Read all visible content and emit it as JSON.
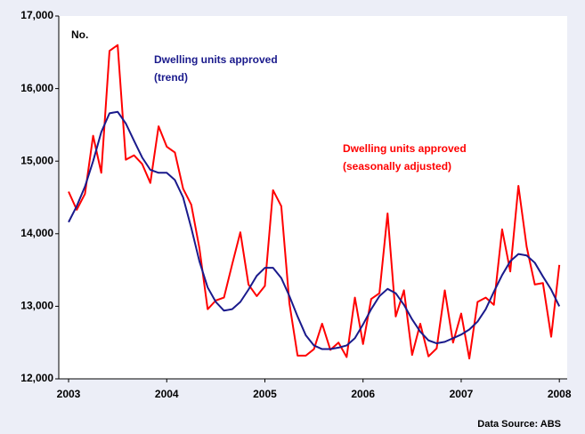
{
  "chart_data": {
    "type": "line",
    "annotations": [
      {
        "text": "No.",
        "color": "#000000"
      },
      {
        "text": "Dwelling units approved",
        "color": "#1a1a8c"
      },
      {
        "text": "(trend)",
        "color": "#1a1a8c"
      },
      {
        "text": "Dwelling units approved",
        "color": "#ff0000"
      },
      {
        "text": "(seasonally adjusted)",
        "color": "#ff0000"
      }
    ],
    "source": "Data Source: ABS",
    "x": [
      2003,
      2003.083,
      2003.167,
      2003.25,
      2003.333,
      2003.417,
      2003.5,
      2003.583,
      2003.667,
      2003.75,
      2003.833,
      2003.917,
      2004,
      2004.083,
      2004.167,
      2004.25,
      2004.333,
      2004.417,
      2004.5,
      2004.583,
      2004.667,
      2004.75,
      2004.833,
      2004.917,
      2005,
      2005.083,
      2005.167,
      2005.25,
      2005.333,
      2005.417,
      2005.5,
      2005.583,
      2005.667,
      2005.75,
      2005.833,
      2005.917,
      2006,
      2006.083,
      2006.167,
      2006.25,
      2006.333,
      2006.417,
      2006.5,
      2006.583,
      2006.667,
      2006.75,
      2006.833,
      2006.917,
      2007,
      2007.083,
      2007.167,
      2007.25,
      2007.333,
      2007.417,
      2007.5,
      2007.583,
      2007.667,
      2007.75,
      2007.833,
      2007.917,
      2008
    ],
    "series": [
      {
        "name": "Dwelling units approved (seasonally adjusted)",
        "color": "#ff0000",
        "values": [
          14580,
          14330,
          14550,
          15350,
          14840,
          16520,
          16600,
          15020,
          15080,
          14960,
          14700,
          15480,
          15200,
          15120,
          14620,
          14400,
          13800,
          12960,
          13080,
          13120,
          13580,
          14020,
          13300,
          13140,
          13280,
          14600,
          14380,
          13040,
          12320,
          12320,
          12410,
          12760,
          12400,
          12500,
          12300,
          13120,
          12480,
          13100,
          13180,
          14280,
          12860,
          13220,
          12330,
          12760,
          12310,
          12420,
          13220,
          12500,
          12900,
          12280,
          13060,
          13120,
          13020,
          14060,
          13480,
          14660,
          13820,
          13300,
          13320,
          12580,
          13570
        ]
      },
      {
        "name": "Dwelling units approved (trend)",
        "color": "#1a1a8c",
        "values": [
          14160,
          14380,
          14650,
          15000,
          15400,
          15660,
          15680,
          15520,
          15280,
          15050,
          14880,
          14840,
          14840,
          14740,
          14500,
          14080,
          13620,
          13260,
          13060,
          12940,
          12960,
          13060,
          13230,
          13420,
          13530,
          13530,
          13390,
          13140,
          12860,
          12600,
          12460,
          12410,
          12410,
          12430,
          12460,
          12560,
          12750,
          12960,
          13140,
          13240,
          13180,
          13020,
          12820,
          12650,
          12530,
          12490,
          12510,
          12560,
          12610,
          12680,
          12790,
          12960,
          13200,
          13430,
          13620,
          13720,
          13700,
          13600,
          13410,
          13230,
          13000
        ]
      }
    ],
    "xlim": [
      2002.9,
      2008.08
    ],
    "xticks": [
      2003,
      2004,
      2005,
      2006,
      2007,
      2008
    ],
    "ylim": [
      12000,
      17000
    ],
    "yticks": [
      {
        "value": 12000,
        "label": "12,000"
      },
      {
        "value": 13000,
        "label": "13,000"
      },
      {
        "value": 14000,
        "label": "14,000"
      },
      {
        "value": 15000,
        "label": "15,000"
      },
      {
        "value": 16000,
        "label": "16,000"
      },
      {
        "value": 17000,
        "label": "17,000"
      }
    ]
  }
}
